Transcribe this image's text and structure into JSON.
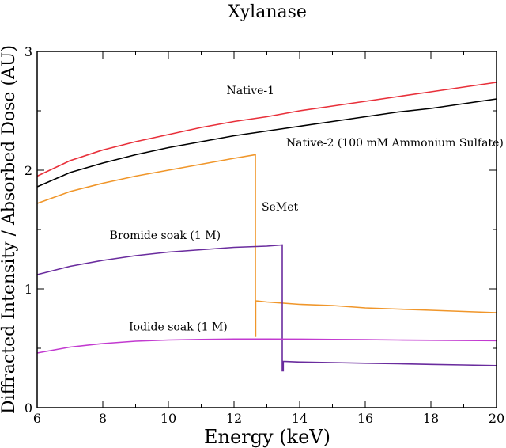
{
  "chart_data": {
    "type": "line",
    "title": "Xylanase",
    "xlabel": "Energy (keV)",
    "ylabel": "Diffracted Intensity / Absorbed Dose (AU)",
    "xlim": [
      6,
      20
    ],
    "ylim": [
      0,
      3
    ],
    "xticks": [
      6,
      8,
      10,
      12,
      14,
      16,
      18,
      20
    ],
    "yticks": [
      0,
      1,
      2,
      3
    ],
    "grid": false,
    "legend": "none",
    "series": [
      {
        "name": "Native-1",
        "color": "#e8303a",
        "x": [
          6,
          7,
          8,
          9,
          10,
          11,
          12,
          13,
          14,
          15,
          16,
          17,
          18,
          19,
          20
        ],
        "y": [
          1.95,
          2.08,
          2.17,
          2.24,
          2.3,
          2.36,
          2.41,
          2.45,
          2.5,
          2.54,
          2.58,
          2.62,
          2.66,
          2.7,
          2.74
        ]
      },
      {
        "name": "Native-2 (100 mM Ammonium Sulfate)",
        "color": "#000000",
        "x": [
          6,
          7,
          8,
          9,
          10,
          11,
          12,
          13,
          14,
          15,
          16,
          17,
          18,
          19,
          20
        ],
        "y": [
          1.86,
          1.98,
          2.06,
          2.13,
          2.19,
          2.24,
          2.29,
          2.33,
          2.37,
          2.41,
          2.45,
          2.49,
          2.52,
          2.56,
          2.6
        ]
      },
      {
        "name": "SeMet",
        "color": "#f0962a",
        "x": [
          6,
          7,
          8,
          9,
          10,
          11,
          12,
          12.65,
          12.65,
          12.66,
          12.66,
          13,
          14,
          15,
          16,
          17,
          18,
          19,
          20
        ],
        "y": [
          1.72,
          1.82,
          1.89,
          1.95,
          2.0,
          2.05,
          2.1,
          2.13,
          0.6,
          0.6,
          0.9,
          0.89,
          0.87,
          0.86,
          0.84,
          0.83,
          0.82,
          0.81,
          0.8
        ]
      },
      {
        "name": "Bromide soak (1 M)",
        "color": "#6a2c9e",
        "x": [
          6,
          7,
          8,
          9,
          10,
          11,
          12,
          13,
          13.47,
          13.47,
          13.5,
          13.5,
          14,
          15,
          16,
          17,
          18,
          19,
          20
        ],
        "y": [
          1.12,
          1.19,
          1.24,
          1.28,
          1.31,
          1.33,
          1.35,
          1.36,
          1.37,
          0.31,
          0.31,
          0.39,
          0.385,
          0.38,
          0.375,
          0.37,
          0.365,
          0.36,
          0.355
        ]
      },
      {
        "name": "Iodide soak (1 M)",
        "color": "#c23ad0",
        "x": [
          6,
          7,
          8,
          9,
          10,
          11,
          12,
          13,
          14,
          15,
          16,
          17,
          18,
          19,
          20
        ],
        "y": [
          0.46,
          0.51,
          0.54,
          0.56,
          0.57,
          0.575,
          0.578,
          0.578,
          0.577,
          0.575,
          0.573,
          0.57,
          0.568,
          0.566,
          0.565
        ]
      }
    ],
    "annotations": [
      {
        "text": "Native-1",
        "x": 12.5,
        "y": 2.64
      },
      {
        "text": "Native-2 (100 mM Ammonium Sulfate)",
        "x": 16.9,
        "y": 2.2
      },
      {
        "text": "SeMet",
        "x": 13.4,
        "y": 1.66
      },
      {
        "text": "Bromide soak (1 M)",
        "x": 9.9,
        "y": 1.42
      },
      {
        "text": "Iodide soak (1 M)",
        "x": 10.3,
        "y": 0.65
      }
    ]
  }
}
